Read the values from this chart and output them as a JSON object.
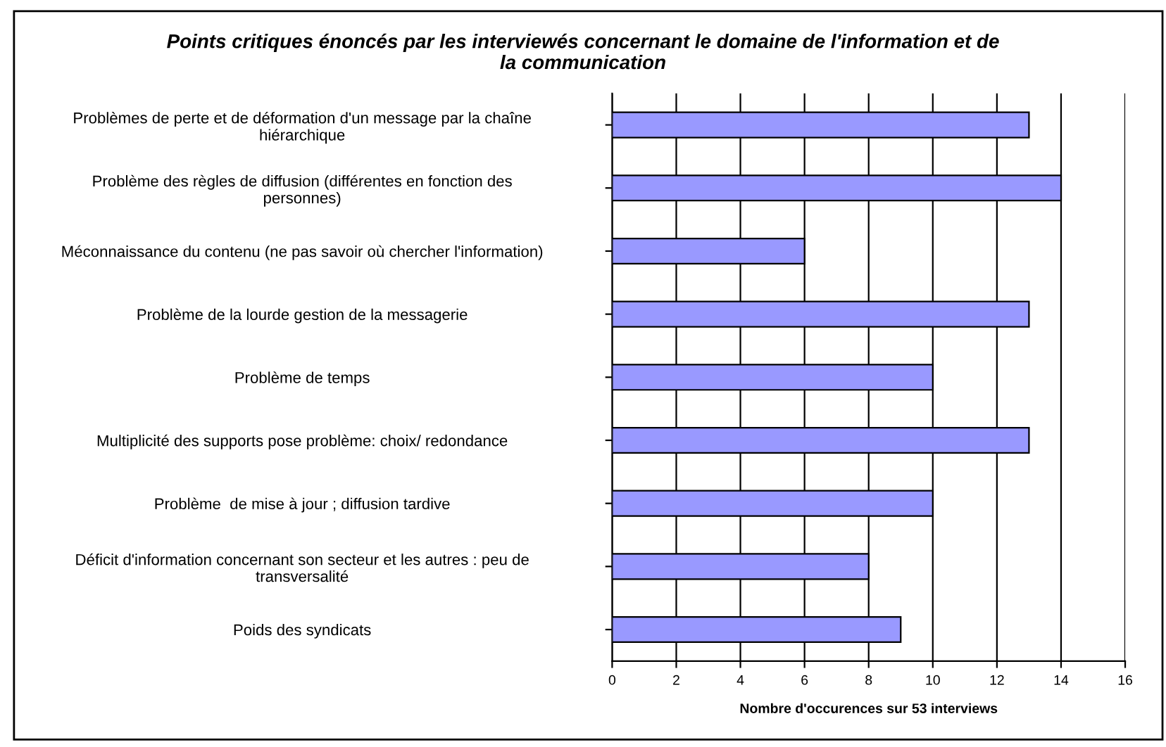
{
  "chart_data": {
    "type": "bar",
    "orientation": "horizontal",
    "title": "Points critiques énoncés par les interviewés concernant le domaine de l'information et de\nla communication",
    "xlabel": "Nombre d'occurences sur 53 interviews",
    "categories": [
      "Problèmes de perte et de déformation d'un message par la chaîne\nhiérarchique",
      "Problème des règles de diffusion (différentes en fonction des\npersonnes)",
      "Méconnaissance du contenu (ne pas savoir où chercher l'information)",
      "Problème de la lourde gestion de la messagerie",
      "Problème de temps",
      "Multiplicité des supports pose problème: choix/ redondance",
      "Problème  de mise à jour ; diffusion tardive",
      "Déficit d'information concernant son secteur et les autres : peu de\ntransversalité",
      "Poids des syndicats"
    ],
    "values": [
      13,
      14,
      6,
      13,
      10,
      13,
      10,
      8,
      9
    ],
    "color": "#9999ff",
    "xlim": [
      0,
      16
    ],
    "xticks": [
      0,
      2,
      4,
      6,
      8,
      10,
      12,
      14,
      16
    ],
    "grid": "x"
  }
}
